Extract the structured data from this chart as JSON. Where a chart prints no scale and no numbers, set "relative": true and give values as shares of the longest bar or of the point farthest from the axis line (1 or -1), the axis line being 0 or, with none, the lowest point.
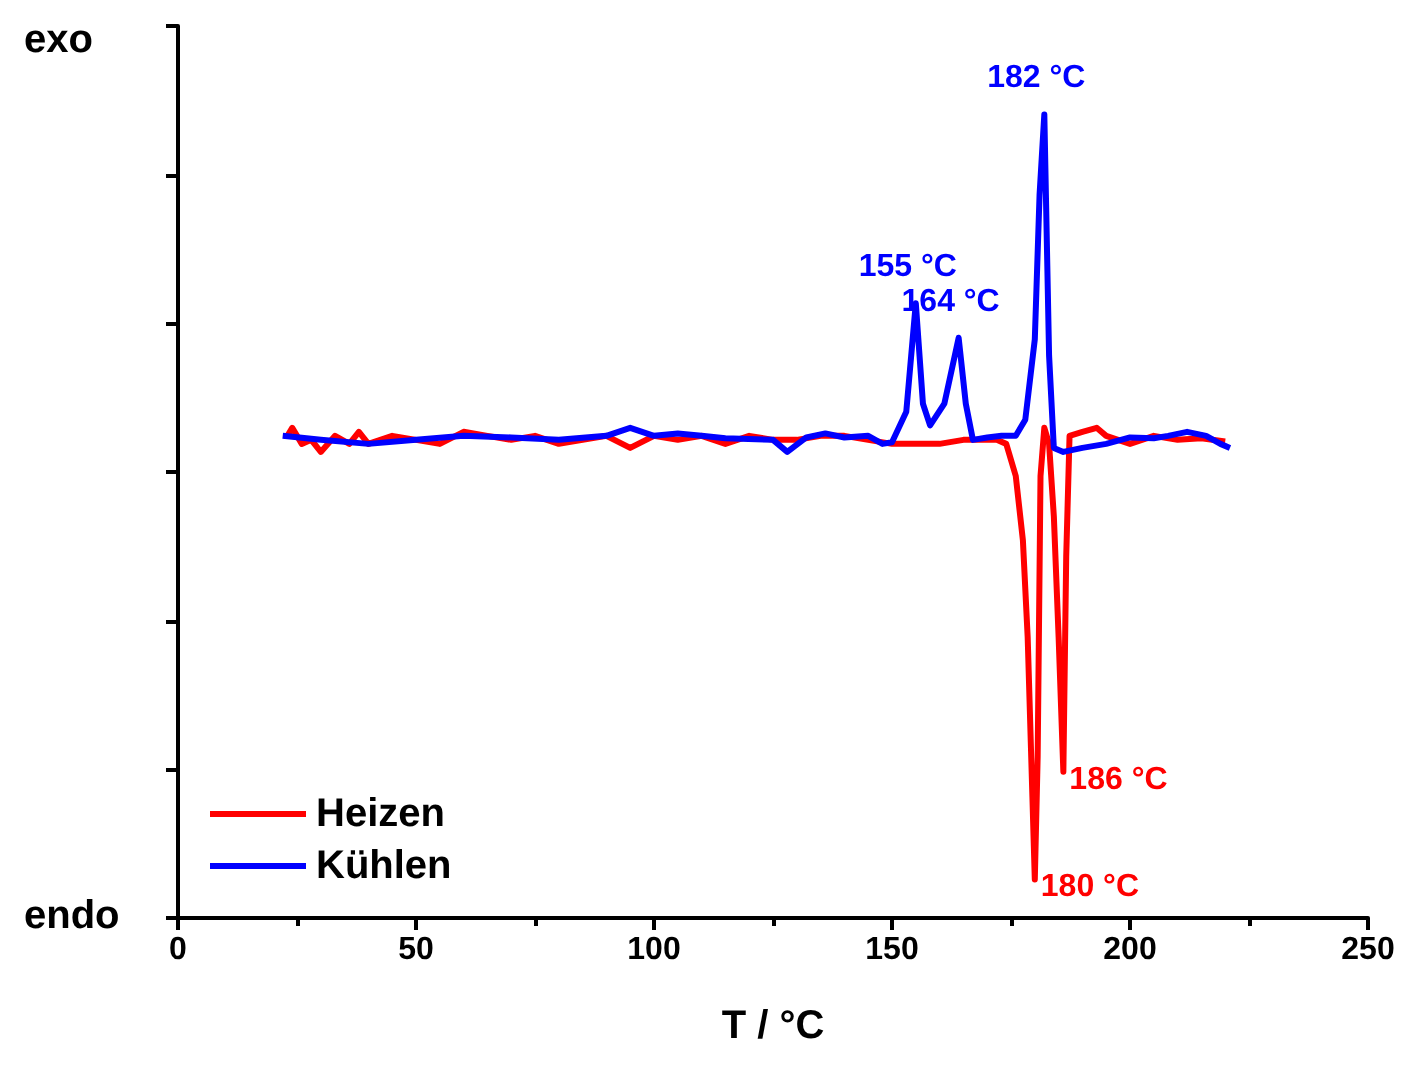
{
  "chart_data": {
    "type": "line",
    "relative": true,
    "xlabel": "T / °C",
    "xlim": [
      0,
      250
    ],
    "xticks": [
      0,
      50,
      100,
      150,
      200,
      250
    ],
    "grid": false,
    "legend": "bottom left",
    "annotations": [
      "exo",
      "endo",
      {
        "text": "182 °C",
        "x": 182,
        "y": 1.0
      },
      {
        "text": "155 °C",
        "x": 155,
        "y": 0.765
      },
      {
        "text": "164 °C",
        "x": 164,
        "y": 0.722
      },
      {
        "text": "186 °C",
        "x": 186,
        "y": 0.182
      },
      {
        "text": "180 °C",
        "x": 180,
        "y": 0.048
      }
    ],
    "series": [
      {
        "name": "Heizen",
        "color": "#ff0000",
        "x": [
          23,
          24,
          26,
          28,
          30,
          33,
          36,
          38,
          40,
          45,
          50,
          55,
          60,
          65,
          70,
          75,
          80,
          85,
          90,
          95,
          100,
          105,
          110,
          115,
          120,
          125,
          130,
          135,
          140,
          145,
          150,
          155,
          160,
          165,
          170,
          172,
          174,
          176,
          177.5,
          178.5,
          179.5,
          180,
          180.6,
          181.2,
          182,
          183,
          184,
          185,
          186,
          186.6,
          187.3,
          190,
          193,
          195,
          200,
          205,
          210,
          215,
          220
        ],
        "values": [
          0.6,
          0.61,
          0.59,
          0.595,
          0.58,
          0.6,
          0.59,
          0.605,
          0.59,
          0.6,
          0.595,
          0.59,
          0.605,
          0.6,
          0.595,
          0.6,
          0.59,
          0.595,
          0.6,
          0.585,
          0.6,
          0.595,
          0.6,
          0.59,
          0.6,
          0.595,
          0.595,
          0.6,
          0.6,
          0.595,
          0.59,
          0.59,
          0.59,
          0.595,
          0.595,
          0.595,
          0.59,
          0.55,
          0.47,
          0.35,
          0.15,
          0.048,
          0.2,
          0.55,
          0.61,
          0.59,
          0.5,
          0.35,
          0.182,
          0.45,
          0.6,
          0.605,
          0.61,
          0.6,
          0.59,
          0.6,
          0.595,
          0.597,
          0.593
        ]
      },
      {
        "name": "Kühlen",
        "color": "#0000ff",
        "x": [
          22,
          30,
          40,
          50,
          60,
          70,
          80,
          90,
          95,
          100,
          105,
          110,
          115,
          125,
          128,
          132,
          136,
          140,
          145,
          148,
          150,
          153,
          155,
          156.5,
          158,
          161,
          164,
          165.5,
          167,
          170,
          173,
          176,
          178,
          180,
          181,
          182,
          183,
          184,
          186,
          190,
          195,
          200,
          205,
          208,
          212,
          216,
          219,
          221
        ],
        "values": [
          0.6,
          0.595,
          0.59,
          0.595,
          0.6,
          0.598,
          0.595,
          0.6,
          0.61,
          0.6,
          0.603,
          0.6,
          0.597,
          0.595,
          0.58,
          0.598,
          0.603,
          0.598,
          0.6,
          0.59,
          0.592,
          0.63,
          0.765,
          0.64,
          0.613,
          0.64,
          0.722,
          0.64,
          0.595,
          0.598,
          0.6,
          0.6,
          0.62,
          0.72,
          0.9,
          1.0,
          0.7,
          0.585,
          0.58,
          0.585,
          0.59,
          0.598,
          0.597,
          0.6,
          0.605,
          0.6,
          0.59,
          0.585
        ]
      }
    ]
  }
}
